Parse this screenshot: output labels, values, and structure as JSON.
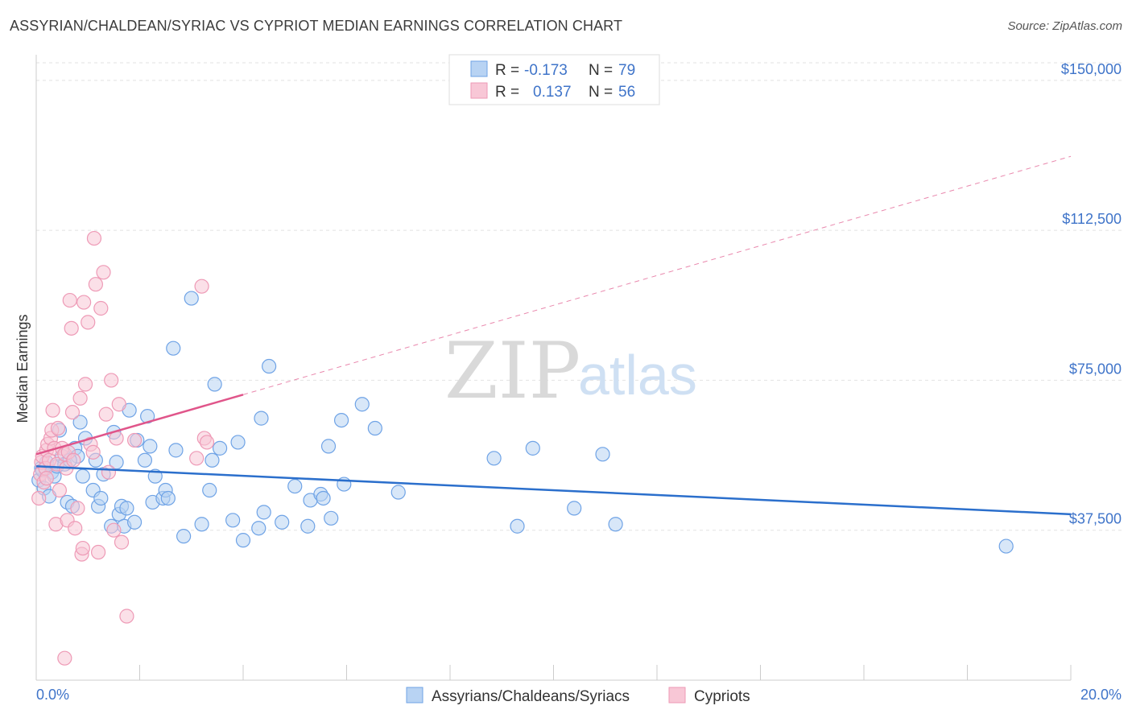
{
  "title": "ASSYRIAN/CHALDEAN/SYRIAC VS CYPRIOT MEDIAN EARNINGS CORRELATION CHART",
  "source": "Source: ZipAtlas.com",
  "watermark": {
    "zip": "ZIP",
    "atlas": "atlas"
  },
  "legend": {
    "r_label": "R =",
    "n_label": "N =",
    "rows": [
      {
        "r": "-0.173",
        "n": "79"
      },
      {
        "r": "0.137",
        "n": "56"
      }
    ]
  },
  "chart_data": {
    "type": "scatter",
    "title": "ASSYRIAN/CHALDEAN/SYRIAC VS CYPRIOT MEDIAN EARNINGS CORRELATION CHART",
    "xlabel": "",
    "ylabel": "Median Earnings",
    "xlim": [
      0,
      20
    ],
    "ylim": [
      0,
      155000
    ],
    "x_tick_labels": [
      "0.0%",
      "20.0%"
    ],
    "y_ticks": [
      37500,
      75000,
      112500,
      150000
    ],
    "y_tick_labels": [
      "$37,500",
      "$75,000",
      "$112,500",
      "$150,000"
    ],
    "grid": "horizontal dashed",
    "legend_position": "top-center",
    "series": [
      {
        "name": "Assyrians/Chaldeans/Syriacs",
        "color": "#6fa3e6",
        "fill": "#b8d3f3",
        "line_color": "#2b6fcc",
        "trend": {
          "x0": 0,
          "y0": 53500,
          "x1": 20,
          "y1": 41500
        },
        "points": [
          [
            0.05,
            50000
          ],
          [
            0.1,
            53000
          ],
          [
            0.12,
            52500
          ],
          [
            0.15,
            48000
          ],
          [
            0.2,
            54500
          ],
          [
            0.3,
            52000
          ],
          [
            0.35,
            51000
          ],
          [
            0.4,
            53500
          ],
          [
            0.45,
            62500
          ],
          [
            0.5,
            56000
          ],
          [
            0.55,
            54000
          ],
          [
            0.6,
            44500
          ],
          [
            0.7,
            43500
          ],
          [
            0.75,
            58000
          ],
          [
            0.8,
            56000
          ],
          [
            0.85,
            64500
          ],
          [
            0.9,
            51000
          ],
          [
            0.95,
            60500
          ],
          [
            1.1,
            47500
          ],
          [
            1.15,
            55000
          ],
          [
            1.2,
            43500
          ],
          [
            1.25,
            45500
          ],
          [
            1.3,
            51500
          ],
          [
            1.45,
            38500
          ],
          [
            1.5,
            62000
          ],
          [
            1.55,
            54500
          ],
          [
            1.6,
            41500
          ],
          [
            1.65,
            43500
          ],
          [
            1.7,
            38500
          ],
          [
            1.75,
            43000
          ],
          [
            1.8,
            67500
          ],
          [
            1.9,
            39500
          ],
          [
            1.95,
            60000
          ],
          [
            2.1,
            55000
          ],
          [
            2.15,
            66000
          ],
          [
            2.2,
            58500
          ],
          [
            2.25,
            44500
          ],
          [
            2.3,
            51000
          ],
          [
            2.45,
            45500
          ],
          [
            2.5,
            47500
          ],
          [
            2.55,
            45500
          ],
          [
            2.65,
            83000
          ],
          [
            2.7,
            57500
          ],
          [
            2.85,
            36000
          ],
          [
            3.0,
            95500
          ],
          [
            3.2,
            39000
          ],
          [
            3.35,
            47500
          ],
          [
            3.4,
            55000
          ],
          [
            3.45,
            74000
          ],
          [
            3.55,
            58000
          ],
          [
            3.8,
            40000
          ],
          [
            3.9,
            59500
          ],
          [
            4.0,
            35000
          ],
          [
            4.3,
            38000
          ],
          [
            4.35,
            65500
          ],
          [
            4.4,
            42000
          ],
          [
            4.5,
            78500
          ],
          [
            4.75,
            39500
          ],
          [
            5.0,
            48500
          ],
          [
            5.25,
            38500
          ],
          [
            5.3,
            45000
          ],
          [
            5.5,
            46500
          ],
          [
            5.55,
            45500
          ],
          [
            5.65,
            58500
          ],
          [
            5.7,
            40500
          ],
          [
            5.9,
            65000
          ],
          [
            5.95,
            49000
          ],
          [
            6.3,
            69000
          ],
          [
            6.55,
            63000
          ],
          [
            7.0,
            47000
          ],
          [
            8.85,
            55500
          ],
          [
            9.3,
            38500
          ],
          [
            9.6,
            58000
          ],
          [
            10.4,
            43000
          ],
          [
            10.95,
            56500
          ],
          [
            11.2,
            39000
          ],
          [
            18.75,
            33500
          ],
          [
            0.25,
            46000
          ],
          [
            0.65,
            55000
          ]
        ]
      },
      {
        "name": "Cypriots",
        "color": "#ee9ab6",
        "fill": "#f8c7d6",
        "line_color": "#e0558a",
        "trend": {
          "x0": 0,
          "y0": 56500,
          "x1": 20,
          "y1": 131000
        },
        "trend_solid_until": 4.0,
        "points": [
          [
            0.05,
            45500
          ],
          [
            0.08,
            51500
          ],
          [
            0.1,
            54500
          ],
          [
            0.12,
            56000
          ],
          [
            0.15,
            49500
          ],
          [
            0.18,
            53000
          ],
          [
            0.2,
            57500
          ],
          [
            0.22,
            59000
          ],
          [
            0.25,
            55000
          ],
          [
            0.28,
            60500
          ],
          [
            0.3,
            62500
          ],
          [
            0.32,
            67500
          ],
          [
            0.35,
            58000
          ],
          [
            0.38,
            39000
          ],
          [
            0.4,
            54000
          ],
          [
            0.42,
            63000
          ],
          [
            0.45,
            47500
          ],
          [
            0.5,
            58000
          ],
          [
            0.55,
            56500
          ],
          [
            0.58,
            53000
          ],
          [
            0.6,
            40000
          ],
          [
            0.62,
            57000
          ],
          [
            0.65,
            95000
          ],
          [
            0.68,
            88000
          ],
          [
            0.7,
            67000
          ],
          [
            0.72,
            55000
          ],
          [
            0.75,
            38000
          ],
          [
            0.8,
            43000
          ],
          [
            0.85,
            70500
          ],
          [
            0.88,
            31500
          ],
          [
            0.9,
            33000
          ],
          [
            0.92,
            94500
          ],
          [
            0.95,
            74000
          ],
          [
            1.0,
            89500
          ],
          [
            1.05,
            59000
          ],
          [
            1.1,
            57000
          ],
          [
            1.12,
            110500
          ],
          [
            1.15,
            99000
          ],
          [
            1.2,
            32000
          ],
          [
            1.25,
            93000
          ],
          [
            1.3,
            102000
          ],
          [
            1.35,
            66500
          ],
          [
            1.4,
            52000
          ],
          [
            1.45,
            75000
          ],
          [
            1.5,
            37500
          ],
          [
            1.55,
            60500
          ],
          [
            1.6,
            69000
          ],
          [
            1.65,
            34500
          ],
          [
            1.9,
            60000
          ],
          [
            1.75,
            16000
          ],
          [
            0.55,
            5500
          ],
          [
            3.2,
            98500
          ],
          [
            3.25,
            60500
          ],
          [
            3.1,
            55500
          ],
          [
            3.3,
            59500
          ],
          [
            0.2,
            50500
          ]
        ]
      }
    ]
  }
}
